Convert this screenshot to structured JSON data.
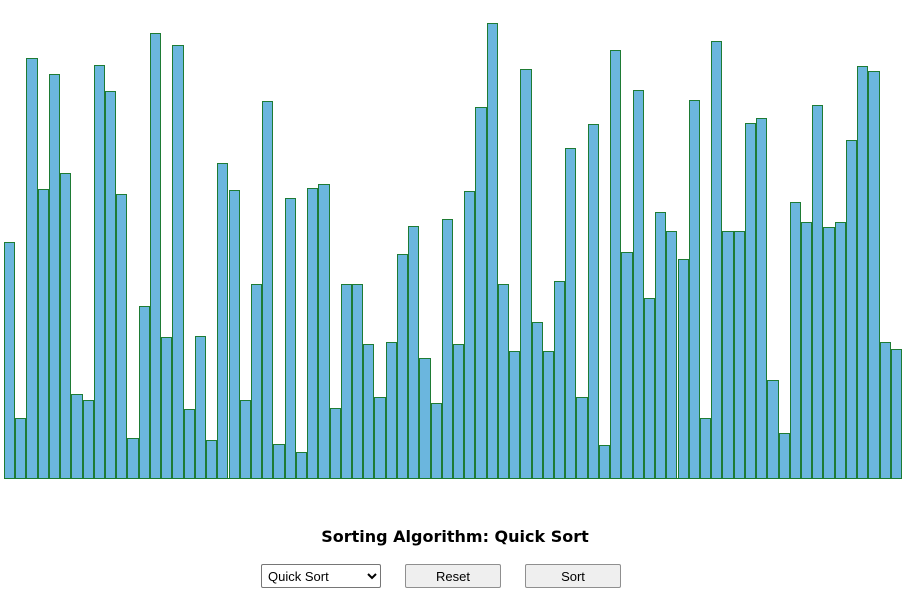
{
  "heading": {
    "prefix": "Sorting Algorithm: ",
    "algorithm": "Quick Sort"
  },
  "controls": {
    "select_options": [
      "Quick Sort"
    ],
    "selected": "Quick Sort",
    "reset_label": "Reset",
    "sort_label": "Sort"
  },
  "colors": {
    "bar_fill": "#6bb6de",
    "bar_border": "#1e7b34"
  },
  "array": {
    "max_value": 100,
    "values": [
      51.5,
      13.2,
      91.7,
      63.1,
      88.3,
      66.6,
      18.3,
      17.0,
      90.2,
      84.5,
      62.0,
      8.8,
      37.6,
      97.1,
      30.7,
      94.5,
      15.1,
      31.1,
      8.4,
      68.7,
      62.9,
      17.0,
      42.3,
      82.3,
      7.5,
      61.1,
      5.6,
      63.3,
      64.2,
      15.3,
      42.3,
      42.3,
      29.2,
      17.7,
      29.8,
      48.9,
      55.1,
      26.1,
      16.3,
      56.6,
      29.2,
      62.7,
      80.9,
      99.3,
      42.3,
      27.8,
      89.2,
      34.0,
      27.8,
      43.0,
      72.1,
      17.7,
      77.4,
      7.3,
      93.4,
      49.3,
      84.7,
      39.3,
      58.1,
      53.9,
      47.9,
      82.5,
      13.0,
      95.4,
      54.0,
      53.9,
      77.6,
      78.6,
      21.5,
      9.8,
      60.2,
      55.8,
      81.5,
      54.9,
      56.0,
      73.9,
      90.0,
      88.9,
      29.6,
      28.1
    ]
  }
}
